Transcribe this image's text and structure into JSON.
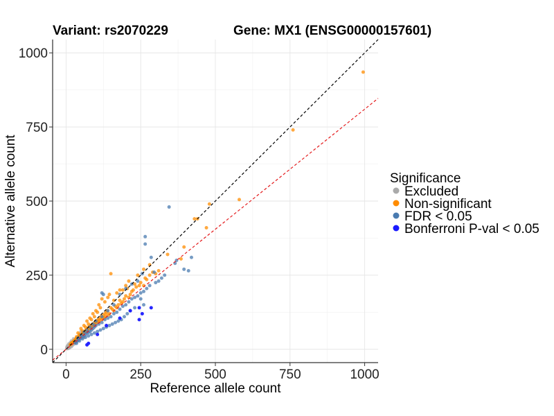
{
  "chart_data": {
    "type": "scatter",
    "title_left": "Variant: rs2070229",
    "title_right": "Gene: MX1 (ENSG00000157601)",
    "xlabel": "Reference allele count",
    "ylabel": "Alternative allele count",
    "xlim": [
      -45,
      1045
    ],
    "ylim": [
      -45,
      1045
    ],
    "x_ticks": [
      0,
      250,
      500,
      750,
      1000
    ],
    "y_ticks": [
      0,
      250,
      500,
      750,
      1000
    ],
    "x_tick_labels": [
      "0",
      "250",
      "500",
      "750",
      "1000"
    ],
    "y_tick_labels": [
      "0",
      "250",
      "500",
      "750",
      "1000"
    ],
    "grid": true,
    "reference_lines": [
      {
        "name": "identity",
        "slope": 1.0,
        "intercept": 0,
        "color": "#000000"
      },
      {
        "name": "expected-ratio",
        "slope": 0.81,
        "intercept": 0,
        "color": "#e41a1c"
      }
    ],
    "legend": {
      "title": "Significance",
      "position": "right",
      "entries": [
        {
          "key": "excluded",
          "label": "Excluded",
          "color": "#aaaaaa"
        },
        {
          "key": "nonsig",
          "label": "Non-significant",
          "color": "#ff8c00"
        },
        {
          "key": "fdr",
          "label": "FDR < 0.05",
          "color": "#4a7bb0"
        },
        {
          "key": "bonf",
          "label": "Bonferroni P-val < 0.05",
          "color": "#1a1aff"
        }
      ]
    },
    "series": [
      {
        "name": "Excluded",
        "key": "excluded",
        "points": [
          [
            2,
            3
          ],
          [
            4,
            2
          ],
          [
            5,
            6
          ],
          [
            6,
            4
          ],
          [
            7,
            8
          ],
          [
            8,
            5
          ],
          [
            9,
            10
          ],
          [
            10,
            7
          ],
          [
            11,
            12
          ],
          [
            12,
            9
          ],
          [
            13,
            14
          ],
          [
            14,
            11
          ],
          [
            15,
            16
          ],
          [
            16,
            13
          ],
          [
            17,
            18
          ],
          [
            18,
            15
          ],
          [
            19,
            20
          ],
          [
            20,
            17
          ],
          [
            21,
            22
          ],
          [
            22,
            19
          ],
          [
            23,
            24
          ],
          [
            24,
            21
          ],
          [
            25,
            26
          ],
          [
            26,
            23
          ],
          [
            27,
            28
          ],
          [
            28,
            25
          ],
          [
            29,
            30
          ],
          [
            30,
            27
          ],
          [
            31,
            33
          ],
          [
            32,
            29
          ],
          [
            33,
            35
          ],
          [
            34,
            31
          ],
          [
            35,
            36
          ],
          [
            36,
            33
          ],
          [
            38,
            40
          ],
          [
            40,
            37
          ],
          [
            42,
            44
          ],
          [
            45,
            42
          ],
          [
            48,
            46
          ],
          [
            50,
            60
          ],
          [
            3,
            8
          ],
          [
            8,
            3
          ],
          [
            12,
            5
          ],
          [
            5,
            12
          ],
          [
            18,
            9
          ],
          [
            9,
            18
          ],
          [
            22,
            14
          ],
          [
            14,
            22
          ],
          [
            28,
            18
          ],
          [
            18,
            28
          ],
          [
            35,
            25
          ],
          [
            25,
            35
          ],
          [
            40,
            30
          ],
          [
            60,
            40
          ]
        ]
      },
      {
        "name": "Non-significant",
        "key": "nonsig",
        "points": [
          [
            995,
            935
          ],
          [
            760,
            740
          ],
          [
            580,
            505
          ],
          [
            480,
            490
          ],
          [
            470,
            410
          ],
          [
            440,
            440
          ],
          [
            430,
            440
          ],
          [
            395,
            345
          ],
          [
            385,
            305
          ],
          [
            340,
            320
          ],
          [
            310,
            265
          ],
          [
            300,
            255
          ],
          [
            290,
            260
          ],
          [
            280,
            250
          ],
          [
            270,
            235
          ],
          [
            265,
            240
          ],
          [
            260,
            215
          ],
          [
            250,
            225
          ],
          [
            245,
            215
          ],
          [
            235,
            210
          ],
          [
            230,
            220
          ],
          [
            225,
            200
          ],
          [
            220,
            195
          ],
          [
            215,
            185
          ],
          [
            210,
            175
          ],
          [
            205,
            205
          ],
          [
            200,
            180
          ],
          [
            195,
            170
          ],
          [
            190,
            160
          ],
          [
            185,
            155
          ],
          [
            180,
            165
          ],
          [
            175,
            150
          ],
          [
            170,
            140
          ],
          [
            165,
            145
          ],
          [
            160,
            130
          ],
          [
            155,
            135
          ],
          [
            150,
            140
          ],
          [
            145,
            120
          ],
          [
            140,
            115
          ],
          [
            138,
            130
          ],
          [
            135,
            125
          ],
          [
            132,
            110
          ],
          [
            130,
            120
          ],
          [
            128,
            105
          ],
          [
            125,
            115
          ],
          [
            122,
            108
          ],
          [
            120,
            100
          ],
          [
            118,
            112
          ],
          [
            115,
            105
          ],
          [
            112,
            95
          ],
          [
            110,
            100
          ],
          [
            108,
            92
          ],
          [
            105,
            98
          ],
          [
            102,
            88
          ],
          [
            100,
            95
          ],
          [
            98,
            90
          ],
          [
            96,
            85
          ],
          [
            94,
            88
          ],
          [
            92,
            80
          ],
          [
            90,
            86
          ],
          [
            88,
            78
          ],
          [
            86,
            82
          ],
          [
            84,
            75
          ],
          [
            82,
            80
          ],
          [
            80,
            72
          ],
          [
            78,
            76
          ],
          [
            76,
            70
          ],
          [
            74,
            72
          ],
          [
            72,
            66
          ],
          [
            70,
            68
          ],
          [
            68,
            62
          ],
          [
            66,
            64
          ],
          [
            64,
            58
          ],
          [
            62,
            60
          ],
          [
            60,
            55
          ],
          [
            58,
            57
          ],
          [
            56,
            51
          ],
          [
            54,
            53
          ],
          [
            52,
            48
          ],
          [
            50,
            50
          ],
          [
            48,
            45
          ],
          [
            46,
            46
          ],
          [
            44,
            41
          ],
          [
            42,
            43
          ],
          [
            40,
            38
          ],
          [
            38,
            40
          ],
          [
            36,
            35
          ],
          [
            34,
            37
          ],
          [
            32,
            30
          ],
          [
            30,
            32
          ],
          [
            28,
            27
          ],
          [
            26,
            28
          ],
          [
            24,
            23
          ],
          [
            22,
            24
          ],
          [
            20,
            20
          ],
          [
            18,
            21
          ],
          [
            16,
            17
          ],
          [
            14,
            16
          ],
          [
            145,
            185
          ],
          [
            150,
            255
          ],
          [
            120,
            170
          ],
          [
            110,
            150
          ],
          [
            100,
            130
          ],
          [
            90,
            120
          ],
          [
            80,
            105
          ],
          [
            70,
            95
          ],
          [
            60,
            80
          ],
          [
            50,
            70
          ],
          [
            40,
            55
          ],
          [
            170,
            190
          ],
          [
            180,
            200
          ],
          [
            200,
            215
          ],
          [
            130,
            160
          ],
          [
            140,
            175
          ],
          [
            160,
            165
          ],
          [
            75,
            85
          ],
          [
            65,
            75
          ],
          [
            55,
            62
          ],
          [
            45,
            50
          ],
          [
            35,
            42
          ],
          [
            210,
            230
          ],
          [
            190,
            200
          ],
          [
            240,
            250
          ],
          [
            260,
            270
          ],
          [
            280,
            285
          ],
          [
            115,
            140
          ],
          [
            105,
            125
          ],
          [
            95,
            110
          ],
          [
            85,
            100
          ]
        ]
      },
      {
        "name": "FDR < 0.05",
        "key": "fdr",
        "points": [
          [
            345,
            480
          ],
          [
            265,
            380
          ],
          [
            265,
            355
          ],
          [
            420,
            310
          ],
          [
            370,
            300
          ],
          [
            365,
            290
          ],
          [
            395,
            270
          ],
          [
            410,
            265
          ],
          [
            330,
            250
          ],
          [
            320,
            240
          ],
          [
            310,
            230
          ],
          [
            300,
            225
          ],
          [
            280,
            215
          ],
          [
            270,
            205
          ],
          [
            260,
            195
          ],
          [
            250,
            190
          ],
          [
            240,
            180
          ],
          [
            230,
            175
          ],
          [
            220,
            170
          ],
          [
            210,
            160
          ],
          [
            200,
            150
          ],
          [
            190,
            145
          ],
          [
            180,
            135
          ],
          [
            170,
            125
          ],
          [
            160,
            120
          ],
          [
            150,
            110
          ],
          [
            140,
            105
          ],
          [
            130,
            100
          ],
          [
            120,
            90
          ],
          [
            110,
            85
          ],
          [
            100,
            80
          ],
          [
            95,
            75
          ],
          [
            90,
            70
          ],
          [
            85,
            65
          ],
          [
            80,
            60
          ],
          [
            75,
            57
          ],
          [
            70,
            55
          ],
          [
            65,
            50
          ],
          [
            60,
            46
          ],
          [
            55,
            42
          ],
          [
            50,
            38
          ],
          [
            45,
            35
          ],
          [
            40,
            30
          ],
          [
            35,
            27
          ],
          [
            30,
            22
          ],
          [
            120,
            190
          ],
          [
            125,
            185
          ],
          [
            285,
            310
          ],
          [
            295,
            260
          ],
          [
            250,
            170
          ],
          [
            260,
            150
          ],
          [
            230,
            140
          ],
          [
            215,
            130
          ],
          [
            205,
            120
          ],
          [
            195,
            110
          ],
          [
            185,
            100
          ],
          [
            175,
            95
          ],
          [
            165,
            90
          ],
          [
            155,
            85
          ],
          [
            145,
            80
          ],
          [
            135,
            75
          ],
          [
            125,
            70
          ],
          [
            115,
            65
          ],
          [
            105,
            60
          ],
          [
            95,
            55
          ],
          [
            85,
            50
          ],
          [
            75,
            45
          ],
          [
            65,
            40
          ],
          [
            55,
            35
          ],
          [
            45,
            28
          ],
          [
            35,
            20
          ],
          [
            255,
            255
          ],
          [
            240,
            230
          ],
          [
            220,
            220
          ],
          [
            200,
            205
          ],
          [
            180,
            185
          ],
          [
            160,
            150
          ],
          [
            140,
            130
          ],
          [
            120,
            110
          ],
          [
            100,
            95
          ],
          [
            90,
            85
          ],
          [
            80,
            75
          ],
          [
            70,
            65
          ],
          [
            60,
            58
          ],
          [
            50,
            48
          ],
          [
            40,
            38
          ]
        ]
      },
      {
        "name": "Bonferroni P-val < 0.05",
        "key": "bonf",
        "points": [
          [
            245,
            140
          ],
          [
            215,
            130
          ],
          [
            285,
            140
          ],
          [
            245,
            100
          ],
          [
            75,
            20
          ],
          [
            70,
            15
          ],
          [
            105,
            50
          ],
          [
            135,
            80
          ],
          [
            255,
            120
          ],
          [
            180,
            105
          ]
        ]
      }
    ]
  }
}
